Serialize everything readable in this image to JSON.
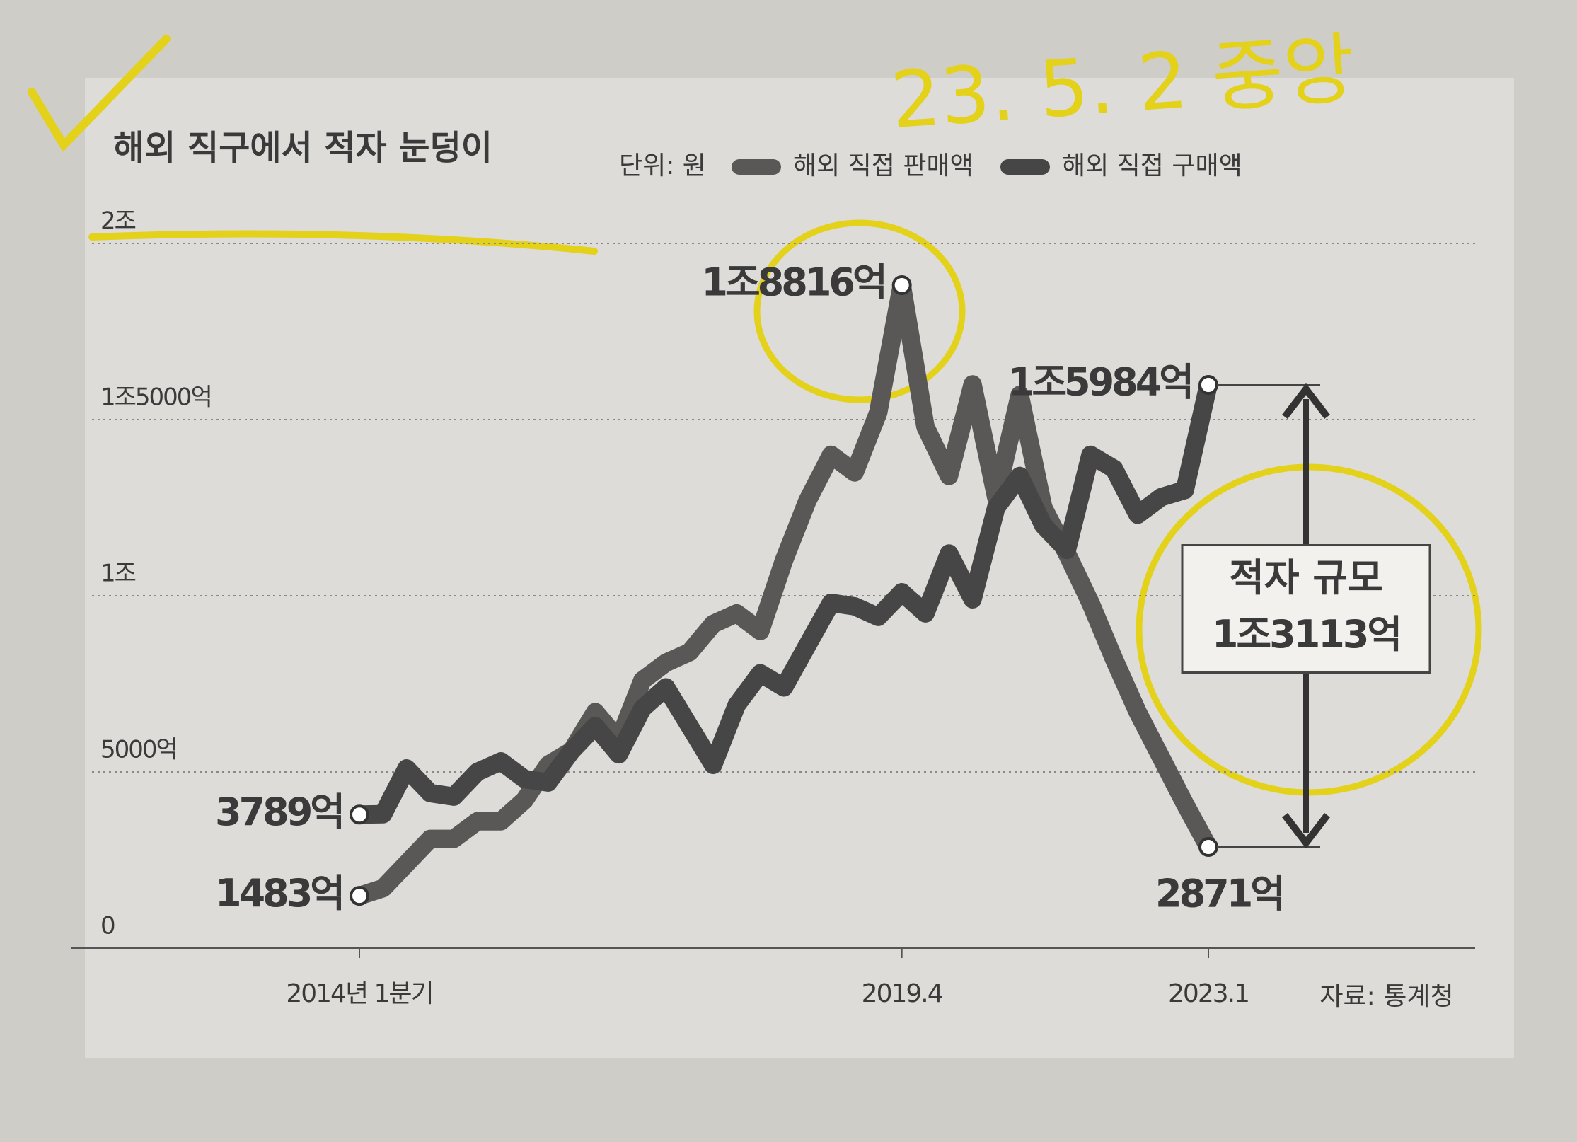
{
  "chart_data": {
    "type": "line",
    "title": "해외 직구에서 적자 눈덩이",
    "unit": "단위: 원",
    "source": "자료: 통계청",
    "handwriting": "23. 5. 2 중앙",
    "categories": [
      "2014년 1분기",
      null,
      null,
      null,
      null,
      null,
      null,
      null,
      null,
      null,
      null,
      null,
      null,
      null,
      null,
      null,
      null,
      null,
      null,
      null,
      null,
      null,
      null,
      "2019.4",
      null,
      null,
      null,
      null,
      null,
      null,
      null,
      null,
      null,
      null,
      null,
      null,
      "2023.1"
    ],
    "series": [
      {
        "name": "해외 직접 판매액",
        "color": "#595857",
        "values": [
          1483,
          1700,
          2400,
          3100,
          3100,
          3600,
          3600,
          4200,
          5200,
          5600,
          6700,
          5900,
          7600,
          8100,
          8400,
          9200,
          9500,
          9000,
          11000,
          12700,
          14000,
          13500,
          15200,
          18816,
          14800,
          13400,
          16000,
          12800,
          15700,
          12500,
          11200,
          9800,
          8200,
          6700,
          5400,
          4100,
          2871
        ],
        "value_labels": [
          "1483억",
          null,
          null,
          null,
          null,
          null,
          null,
          null,
          null,
          null,
          null,
          null,
          null,
          null,
          null,
          null,
          null,
          null,
          null,
          null,
          null,
          null,
          null,
          "1조8816억",
          null,
          null,
          null,
          null,
          null,
          null,
          null,
          null,
          null,
          null,
          null,
          null,
          "2871억"
        ]
      },
      {
        "name": "해외 직접 구매액",
        "color": "#474646",
        "values": [
          3789,
          3800,
          5100,
          4400,
          4300,
          5000,
          5300,
          4800,
          4700,
          5600,
          6300,
          5500,
          6800,
          7400,
          6300,
          5200,
          6900,
          7800,
          7400,
          8600,
          9800,
          9700,
          9400,
          10100,
          9500,
          11200,
          9900,
          12500,
          13400,
          12000,
          11300,
          14000,
          13600,
          12300,
          12800,
          13000,
          15984
        ],
        "value_labels": [
          "3789억",
          null,
          null,
          null,
          null,
          null,
          null,
          null,
          null,
          null,
          null,
          null,
          null,
          null,
          null,
          null,
          null,
          null,
          null,
          null,
          null,
          null,
          null,
          null,
          null,
          null,
          null,
          null,
          null,
          null,
          null,
          null,
          null,
          null,
          null,
          null,
          "1조5984억"
        ]
      }
    ],
    "annotation": {
      "text": "적자 규모",
      "value": 13113,
      "label": "1조3113억"
    },
    "ylim": [
      0,
      20000
    ],
    "yticks": [
      0,
      {
        "value": 5000,
        "label": "5000억"
      },
      {
        "value": 10000,
        "label": "1조"
      },
      {
        "value": 15000,
        "label": "1조5000억"
      },
      {
        "value": 20000,
        "label": "2조"
      }
    ],
    "grid": true
  }
}
